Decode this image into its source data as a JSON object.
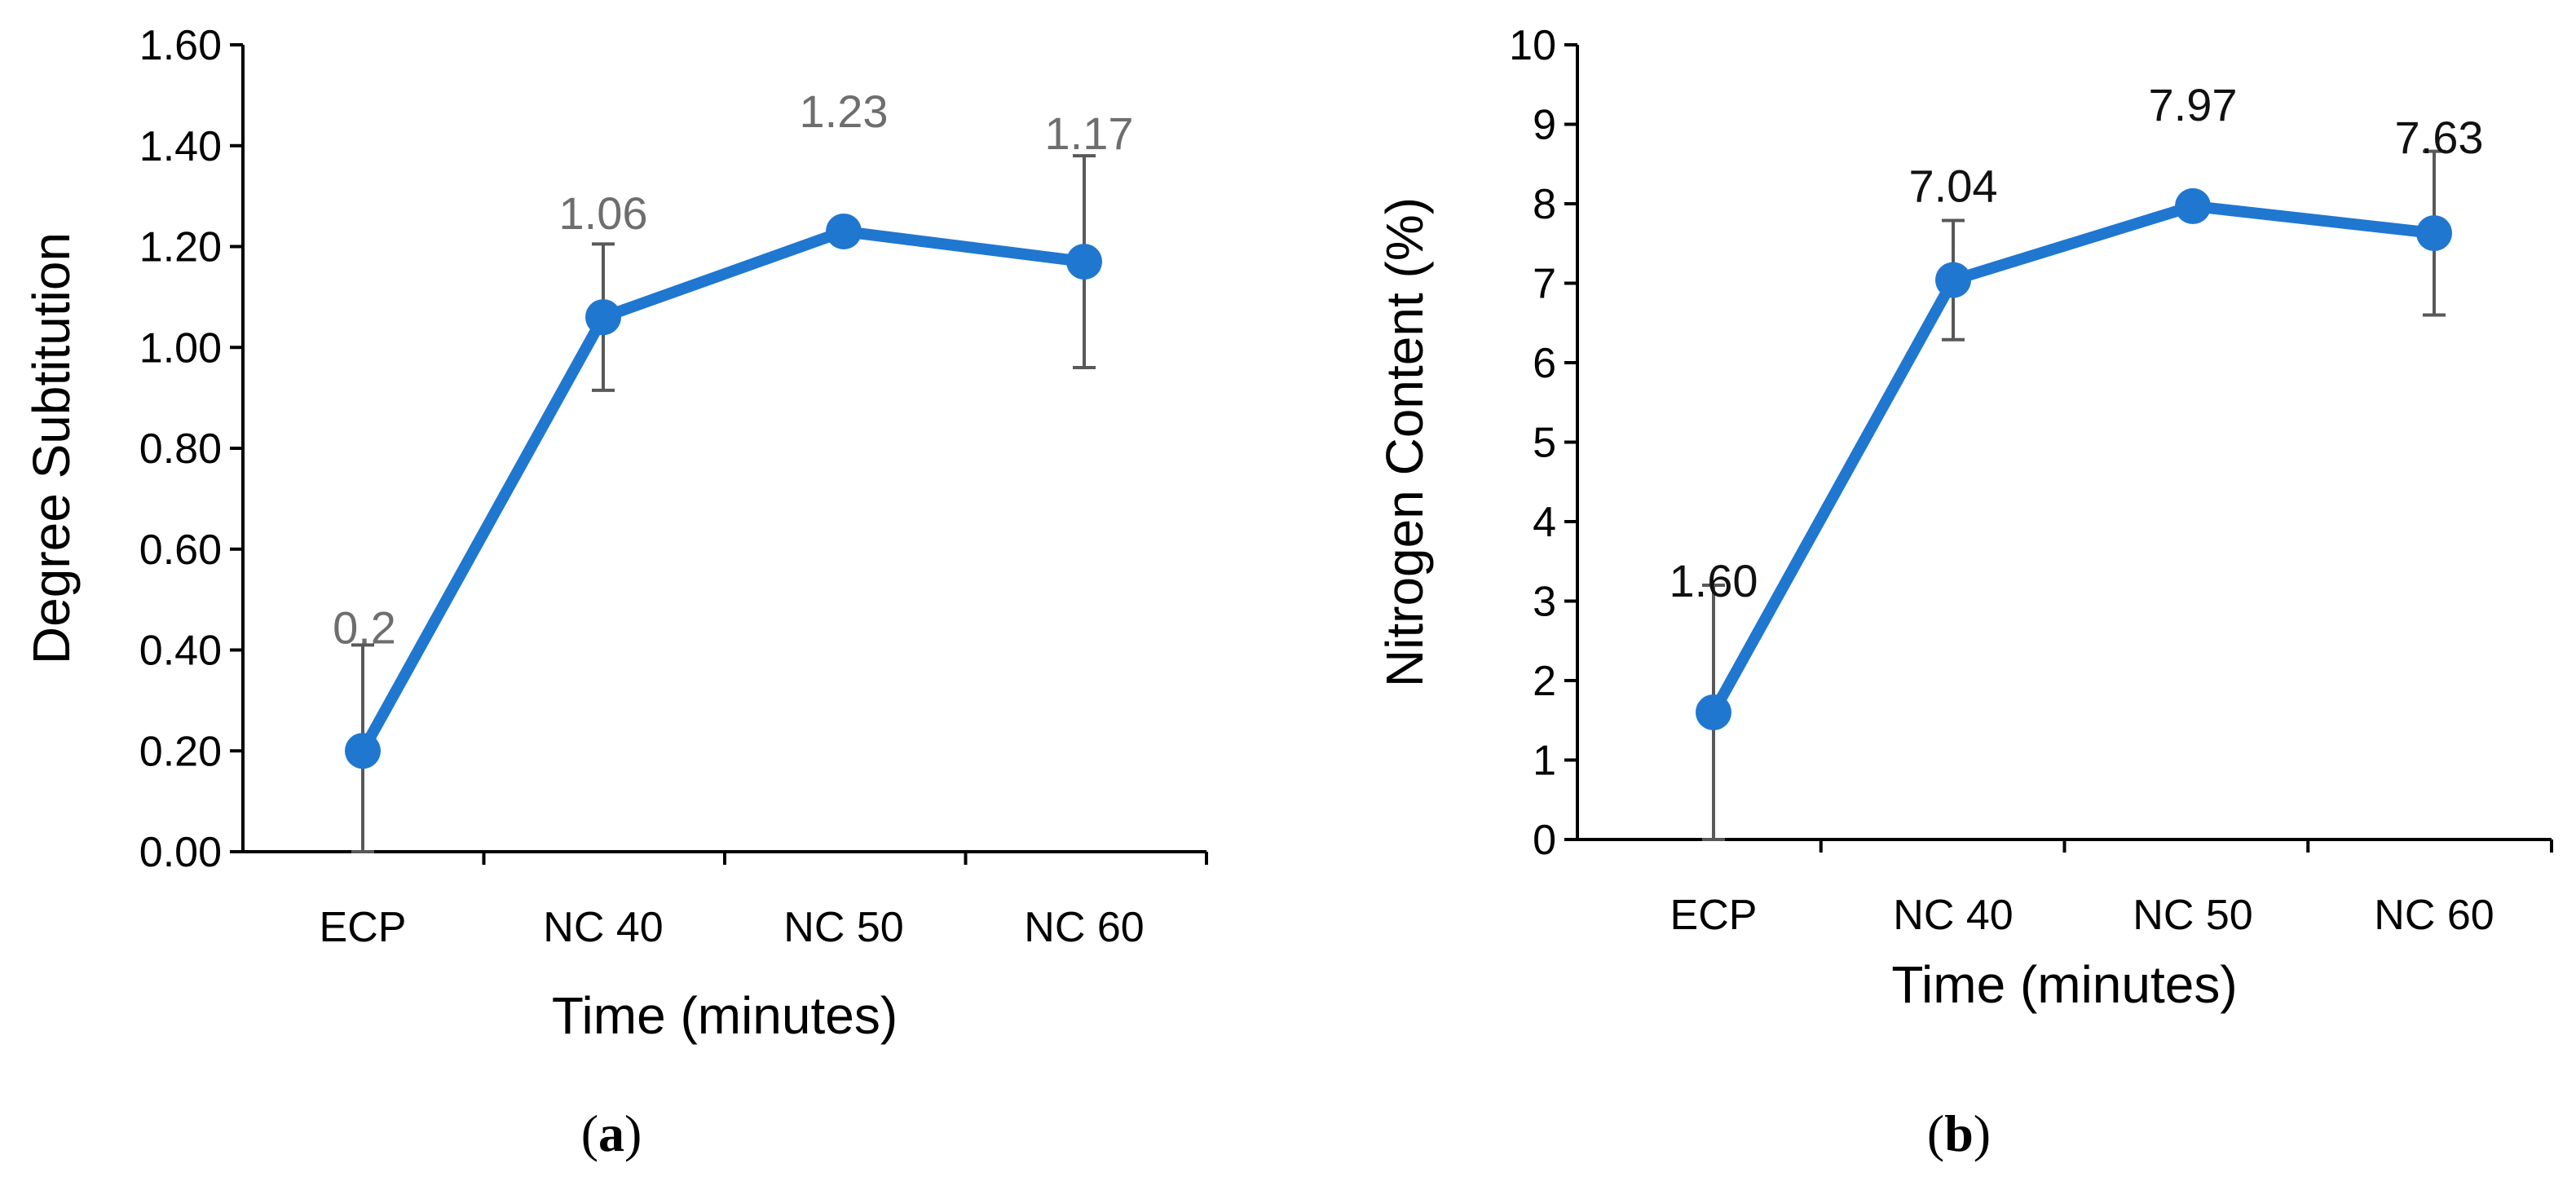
{
  "colors": {
    "series": "#1f77d0",
    "error_bar": "#595959",
    "axis": "#000000",
    "label_a": "#6e6e6e",
    "label_b": "#111111"
  },
  "chart_data": [
    {
      "type": "line",
      "panel": "a",
      "panel_label": {
        "open": "(",
        "letter": "a",
        "close": ")"
      },
      "title": "",
      "xlabel": "Time (minutes)",
      "ylabel": "Degree Subtitution",
      "categories": [
        "ECP",
        "NC 40",
        "NC 50",
        "NC 60"
      ],
      "series": [
        {
          "name": "Degree Subtitution",
          "values": [
            0.2,
            1.06,
            1.23,
            1.17
          ],
          "error": [
            0.21,
            0.145,
            0.02,
            0.21
          ],
          "data_labels": [
            "0.2",
            "1.06",
            "1.23",
            "1.17"
          ]
        }
      ],
      "ylim": [
        0,
        1.6
      ],
      "yticks": [
        "0.00",
        "0.20",
        "0.40",
        "0.60",
        "0.80",
        "1.00",
        "1.20",
        "1.40",
        "1.60"
      ],
      "grid": false
    },
    {
      "type": "line",
      "panel": "b",
      "panel_label": {
        "open": "(",
        "letter": "b",
        "close": ")"
      },
      "title": "",
      "xlabel": "Time (minutes)",
      "ylabel": "Nitrogen Content (%)",
      "categories": [
        "ECP",
        "NC 40",
        "NC 50",
        "NC 60"
      ],
      "series": [
        {
          "name": "Nitrogen Content (%)",
          "values": [
            1.6,
            7.04,
            7.97,
            7.63
          ],
          "error": [
            1.6,
            0.75,
            0.05,
            1.03
          ],
          "data_labels": [
            "1.60",
            "7.04",
            "7.97",
            "7.63"
          ]
        }
      ],
      "ylim": [
        0,
        10
      ],
      "yticks": [
        "0",
        "1",
        "2",
        "3",
        "4",
        "5",
        "6",
        "7",
        "8",
        "9",
        "10"
      ],
      "grid": false
    }
  ]
}
